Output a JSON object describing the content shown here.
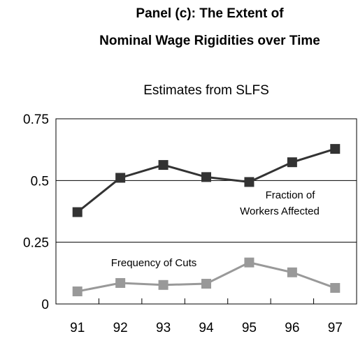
{
  "chart_data": {
    "type": "line",
    "title": [
      "Panel (c): The Extent of",
      "Nominal Wage Rigidities over Time"
    ],
    "subtitle": "Estimates from SLFS",
    "categories": [
      "91",
      "92",
      "93",
      "94",
      "95",
      "96",
      "97"
    ],
    "series": [
      {
        "name": "Fraction of Workers Affected",
        "color": "#333333",
        "values": [
          0.372,
          0.511,
          0.563,
          0.514,
          0.494,
          0.574,
          0.628
        ]
      },
      {
        "name": "Frequency of Cuts",
        "color": "#999999",
        "values": [
          0.051,
          0.085,
          0.077,
          0.082,
          0.168,
          0.128,
          0.065
        ]
      }
    ],
    "annotations": [
      "Fraction of",
      "Workers Affected",
      "Frequency of Cuts"
    ],
    "ylim": [
      0,
      0.75
    ],
    "yticks": [
      0,
      0.25,
      0.5,
      0.75
    ],
    "grid": true
  }
}
